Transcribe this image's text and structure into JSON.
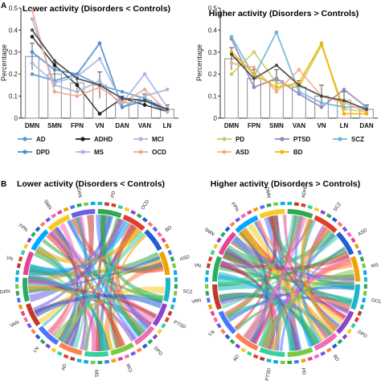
{
  "panel_labels": [
    "A",
    "B"
  ],
  "chart_data": [
    {
      "type": "line",
      "title": "Lower activity (Disorders < Controls)",
      "ylabel": "Percentage",
      "xlabel": "",
      "ylim": [
        0,
        0.5
      ],
      "yticks": [
        "0",
        "0.1",
        "0.2",
        "0.3",
        "0.4",
        "0.5"
      ],
      "grid": false,
      "categories": [
        "DMN",
        "SMN",
        "FPN",
        "VN",
        "DAN",
        "VAN",
        "LN"
      ],
      "bar_values": [
        0.28,
        0.2,
        0.16,
        0.15,
        0.07,
        0.08,
        0.04
      ],
      "bar_errors": [
        0.06,
        0.05,
        0.04,
        0.06,
        0.03,
        0.03,
        0.02
      ],
      "mean_values": [
        0.4,
        0.26,
        0.18,
        0.15,
        0.09,
        0.08,
        0.04
      ],
      "series": [
        {
          "name": "AD",
          "values": [
            0.2,
            0.17,
            0.2,
            0.15,
            0.12,
            0.09,
            0.04
          ]
        },
        {
          "name": "ADHD",
          "values": [
            0.37,
            0.24,
            0.15,
            0.02,
            0.09,
            0.06,
            0.03
          ]
        },
        {
          "name": "MCI",
          "values": [
            0.45,
            0.15,
            0.12,
            0.17,
            0.05,
            0.1,
            0.13
          ]
        },
        {
          "name": "DPD",
          "values": [
            0.3,
            0.22,
            0.2,
            0.34,
            0.05,
            0.08,
            0.03
          ]
        },
        {
          "name": "MS",
          "values": [
            0.25,
            0.16,
            0.19,
            0.27,
            0.07,
            0.2,
            0.05
          ]
        },
        {
          "name": "OCD",
          "values": [
            0.49,
            0.12,
            0.1,
            0.14,
            0.07,
            0.13,
            0.03
          ]
        }
      ],
      "legend": "bottom"
    },
    {
      "type": "line",
      "title": "Higher activity (Disorders > Controls)",
      "ylabel": "Percentage",
      "xlabel": "",
      "ylim": [
        0,
        0.5
      ],
      "yticks": [
        "0",
        "0.1",
        "0.2",
        "0.3",
        "0.4",
        "0.5"
      ],
      "grid": false,
      "categories": [
        "DMN",
        "FPN",
        "SMN",
        "VAN",
        "VN",
        "LN",
        "DAN"
      ],
      "bar_values": [
        0.27,
        0.18,
        0.17,
        0.14,
        0.1,
        0.08,
        0.04
      ],
      "bar_errors": [
        0.05,
        0.04,
        0.05,
        0.03,
        0.05,
        0.04,
        0.02
      ],
      "mean_values": [
        0.29,
        0.18,
        0.24,
        0.15,
        0.1,
        0.08,
        0.04
      ],
      "series": [
        {
          "name": "PD",
          "values": [
            0.2,
            0.3,
            0.16,
            0.14,
            0.33,
            0.04,
            0.03
          ]
        },
        {
          "name": "PTSD",
          "values": [
            0.36,
            0.14,
            0.18,
            0.11,
            0.05,
            0.13,
            0.05
          ]
        },
        {
          "name": "SCZ",
          "values": [
            0.37,
            0.19,
            0.39,
            0.12,
            0.07,
            0.05,
            0.05
          ]
        },
        {
          "name": "ASD",
          "values": [
            0.25,
            0.23,
            0.12,
            0.22,
            0.1,
            0.07,
            0.03
          ]
        },
        {
          "name": "BD",
          "values": [
            0.3,
            0.2,
            0.14,
            0.16,
            0.34,
            0.02,
            0.02
          ]
        }
      ],
      "legend": "bottom"
    },
    {
      "type": "chord",
      "title": "Lower activity (Disorders < Controls)",
      "labels": [
        "PD",
        "OCD",
        "BD",
        "ASD",
        "SCZ",
        "PTSD",
        "DPD",
        "MCI",
        "MS",
        "AD",
        "LN",
        "VAN",
        "DAN",
        "VN",
        "FPN",
        "SMN",
        "DAN"
      ]
    },
    {
      "type": "chord",
      "title": "Higher activity (Disorders > Controls)",
      "labels": [
        "ADHD",
        "SCZ",
        "ASD",
        "MS",
        "OCD",
        "DPD",
        "BD",
        "PD",
        "PTSD",
        "AD",
        "LN",
        "VAN",
        "VN",
        "SMN",
        "FPN",
        "DMN"
      ]
    }
  ],
  "series_colors": {
    "AD": "#5b9bd5",
    "ADHD": "#1b1b1b",
    "MCI": "#a9b8d6",
    "DPD": "#4a8fd0",
    "MS": "#a8b4e6",
    "OCD": "#f1a693",
    "PD": "#c9cf6a",
    "PTSD": "#9b82c4",
    "SCZ": "#6fb5d9",
    "ASD": "#f3b086",
    "BD": "#f2b400"
  },
  "bar_color": "#9e9e9e",
  "mean_line_color": "#4a4a4a"
}
